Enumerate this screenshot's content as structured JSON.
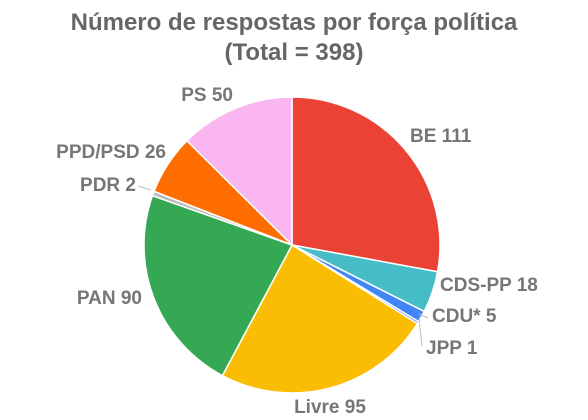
{
  "chart_data": {
    "type": "pie",
    "title": "Número de respostas por força política",
    "subtitle": "(Total = 398)",
    "categories": [
      "BE",
      "CDS-PP",
      "CDU*",
      "JPP",
      "Livre",
      "PAN",
      "PDR",
      "PPD/PSD",
      "PS"
    ],
    "values": [
      111,
      18,
      5,
      1,
      95,
      90,
      2,
      26,
      50
    ],
    "colors": [
      "#EA4335",
      "#46BDC6",
      "#4285F4",
      "#1A73E8",
      "#FBBC04",
      "#34A853",
      "#BDBDBD",
      "#FF6D01",
      "#FAB6F0"
    ],
    "start_angle": "12 o'clock",
    "direction": "clockwise",
    "legend": "none",
    "label_format": "{category} {value}"
  }
}
